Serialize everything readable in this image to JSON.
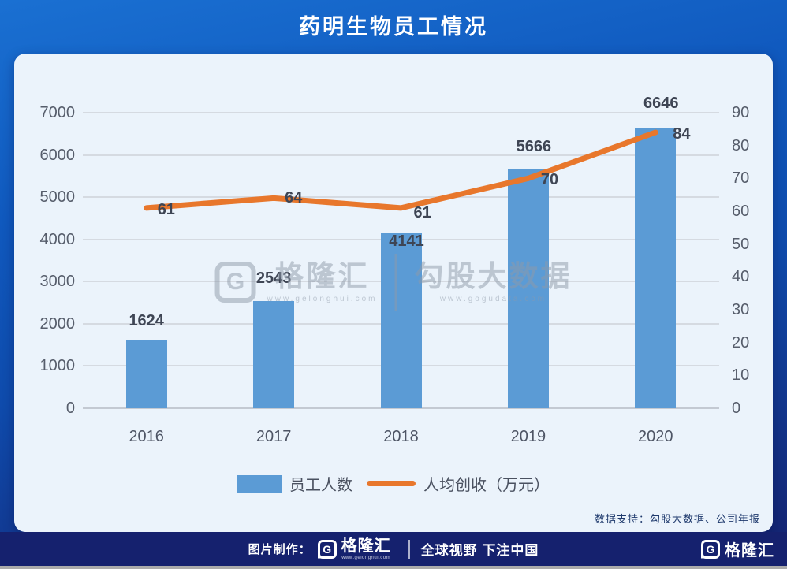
{
  "title": "药明生物员工情况",
  "chart_data": {
    "type": "bar",
    "categories": [
      "2016",
      "2017",
      "2018",
      "2019",
      "2020"
    ],
    "series": [
      {
        "name": "员工人数",
        "type": "bar",
        "axis": "left",
        "values": [
          1624,
          2543,
          4141,
          5666,
          6646
        ],
        "color": "#5B9BD5"
      },
      {
        "name": "人均创收（万元）",
        "type": "line",
        "axis": "right",
        "values": [
          61,
          64,
          61,
          70,
          84
        ],
        "color": "#E8772C"
      }
    ],
    "left_axis": {
      "min": 0,
      "max": 7000,
      "step": 1000,
      "ticks": [
        0,
        1000,
        2000,
        3000,
        4000,
        5000,
        6000,
        7000
      ]
    },
    "right_axis": {
      "min": 0,
      "max": 90,
      "step": 10,
      "ticks": [
        0,
        10,
        20,
        30,
        40,
        50,
        60,
        70,
        80,
        90
      ]
    },
    "grid": true,
    "legend_position": "bottom",
    "layout": {
      "bar_label_dy": [
        -24,
        -29,
        10,
        -28,
        -31
      ],
      "bar_label_dx": [
        0,
        0,
        7,
        7,
        7
      ],
      "line_label_dx": [
        14,
        14,
        16,
        16,
        22
      ],
      "line_label_dy": [
        2,
        0,
        6,
        2,
        2
      ]
    }
  },
  "watermark": {
    "brand": "格隆汇",
    "brand_logo_letter": "G",
    "brand_url": "www.gelonghui.com",
    "partner": "勾股大数据",
    "partner_url": "www.gogudata.com"
  },
  "data_support": "数据支持：勾股大数据、公司年报",
  "footer": {
    "made_by": "图片制作：",
    "logo_letter": "G",
    "brand": "格隆汇",
    "brand_url": "www.gelonghui.com",
    "slogan": "全球视野 下注中国"
  },
  "colors": {
    "bar": "#5B9BD5",
    "line": "#E8772C",
    "card_bg": "#EBF3FB",
    "footer_bg": "#15216E"
  }
}
